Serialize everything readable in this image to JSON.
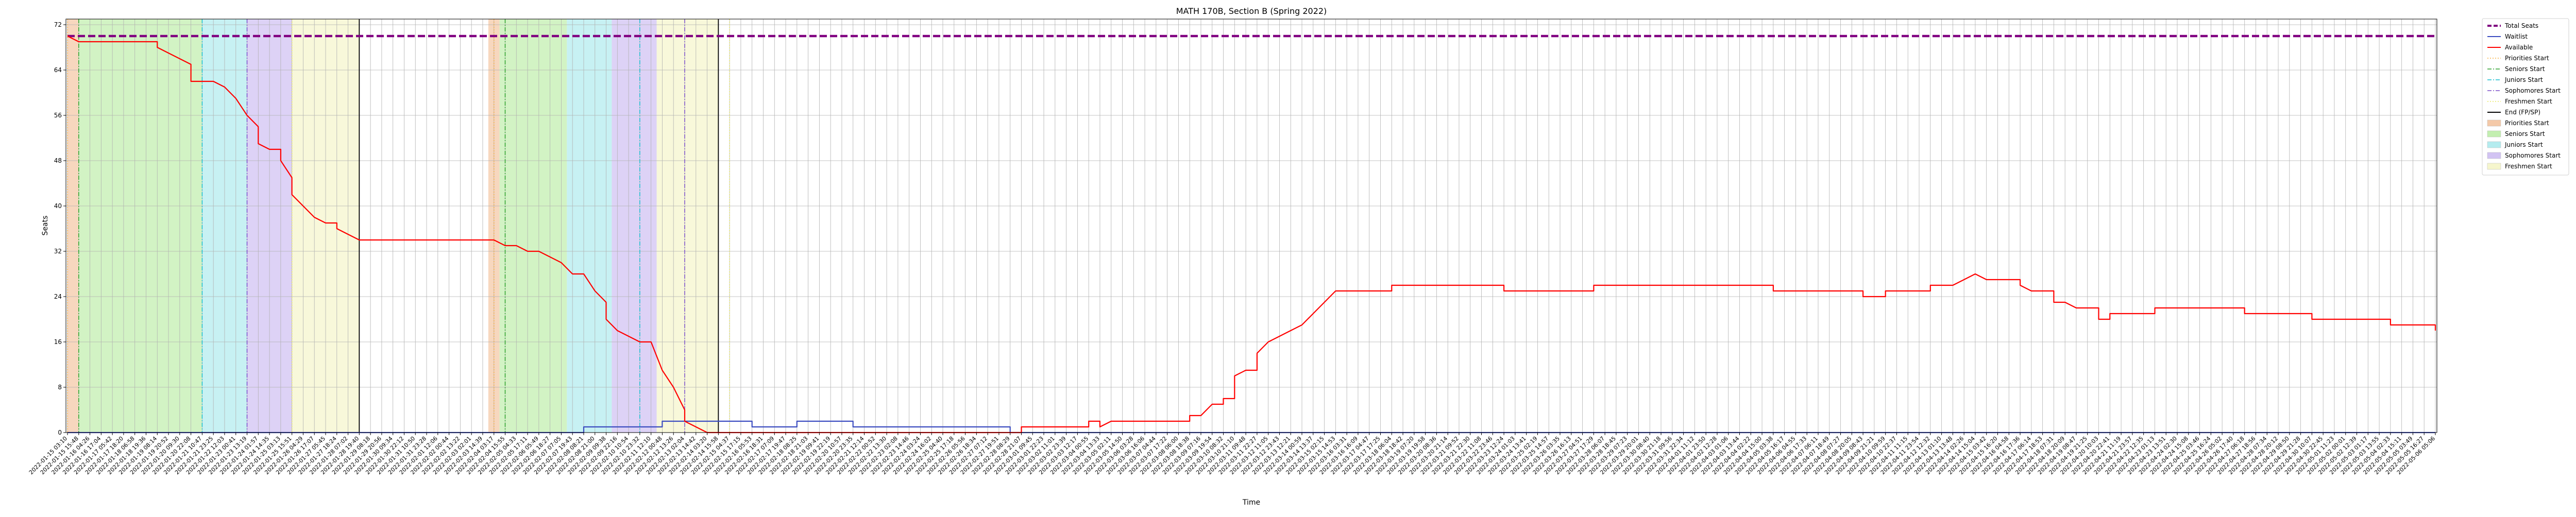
{
  "chart_data": {
    "type": "line",
    "title": "MATH 170B, Section B (Spring 2022)",
    "xlabel": "Time",
    "ylabel": "Seats",
    "ylim": [
      0,
      73
    ],
    "yticks": [
      0,
      8,
      16,
      24,
      32,
      40,
      48,
      56,
      64,
      72
    ],
    "grid": true,
    "legend_position": "outside-right",
    "x_tick_count": 212,
    "x_tick_start_label": "2022-01-15 03:10",
    "x_tick_end_label": "2022-05-06 05:06",
    "series": [
      {
        "name": "Total Seats",
        "color": "#800080",
        "style": "dashed",
        "points": [
          [
            0,
            70
          ],
          [
            211,
            70
          ]
        ]
      },
      {
        "name": "Waitlist",
        "color": "#3b4cc0",
        "style": "solid",
        "points": [
          [
            0,
            0
          ],
          [
            46,
            0
          ],
          [
            46,
            1
          ],
          [
            53,
            1
          ],
          [
            53,
            2
          ],
          [
            61,
            2
          ],
          [
            61,
            1
          ],
          [
            65,
            1
          ],
          [
            65,
            2
          ],
          [
            70,
            2
          ],
          [
            70,
            1
          ],
          [
            84,
            1
          ],
          [
            84,
            0
          ],
          [
            211,
            0
          ]
        ]
      },
      {
        "name": "Available",
        "color": "#ff0000",
        "style": "solid",
        "points": [
          [
            0,
            70
          ],
          [
            1,
            69
          ],
          [
            2,
            69
          ],
          [
            8,
            69
          ],
          [
            8,
            68
          ],
          [
            9,
            67
          ],
          [
            10,
            66
          ],
          [
            11,
            65
          ],
          [
            11,
            62
          ],
          [
            13,
            62
          ],
          [
            14,
            61
          ],
          [
            15,
            59
          ],
          [
            16,
            56
          ],
          [
            17,
            54
          ],
          [
            17,
            51
          ],
          [
            18,
            50
          ],
          [
            19,
            50
          ],
          [
            19,
            48
          ],
          [
            20,
            45
          ],
          [
            20,
            42
          ],
          [
            21,
            40
          ],
          [
            22,
            38
          ],
          [
            23,
            37
          ],
          [
            24,
            37
          ],
          [
            24,
            36
          ],
          [
            25,
            35
          ],
          [
            26,
            34
          ],
          [
            27,
            34
          ],
          [
            28,
            34
          ],
          [
            38,
            34
          ],
          [
            39,
            33
          ],
          [
            40,
            33
          ],
          [
            41,
            32
          ],
          [
            42,
            32
          ],
          [
            43,
            31
          ],
          [
            44,
            30
          ],
          [
            45,
            28
          ],
          [
            46,
            28
          ],
          [
            47,
            25
          ],
          [
            48,
            23
          ],
          [
            48,
            20
          ],
          [
            49,
            18
          ],
          [
            50,
            17
          ],
          [
            51,
            16
          ],
          [
            52,
            16
          ],
          [
            53,
            11
          ],
          [
            54,
            8
          ],
          [
            55,
            4
          ],
          [
            55,
            2
          ],
          [
            56,
            1
          ],
          [
            57,
            0
          ],
          [
            58,
            0
          ],
          [
            85,
            0
          ],
          [
            85,
            1
          ],
          [
            91,
            1
          ],
          [
            91,
            2
          ],
          [
            92,
            2
          ],
          [
            92,
            1
          ],
          [
            93,
            2
          ],
          [
            94,
            2
          ],
          [
            100,
            2
          ],
          [
            100,
            3
          ],
          [
            101,
            3
          ],
          [
            102,
            5
          ],
          [
            103,
            5
          ],
          [
            103,
            6
          ],
          [
            104,
            6
          ],
          [
            104,
            10
          ],
          [
            105,
            11
          ],
          [
            106,
            11
          ],
          [
            106,
            14
          ],
          [
            107,
            16
          ],
          [
            108,
            17
          ],
          [
            109,
            18
          ],
          [
            110,
            19
          ],
          [
            111,
            21
          ],
          [
            112,
            23
          ],
          [
            113,
            25
          ],
          [
            118,
            25
          ],
          [
            118,
            26
          ],
          [
            128,
            26
          ],
          [
            128,
            25
          ],
          [
            136,
            25
          ],
          [
            136,
            26
          ],
          [
            152,
            26
          ],
          [
            152,
            25
          ],
          [
            160,
            25
          ],
          [
            160,
            24
          ],
          [
            162,
            24
          ],
          [
            162,
            25
          ],
          [
            166,
            25
          ],
          [
            166,
            26
          ],
          [
            168,
            26
          ],
          [
            169,
            27
          ],
          [
            170,
            28
          ],
          [
            171,
            27
          ],
          [
            174,
            27
          ],
          [
            174,
            26
          ],
          [
            175,
            25
          ],
          [
            177,
            25
          ],
          [
            177,
            23
          ],
          [
            178,
            23
          ],
          [
            179,
            22
          ],
          [
            181,
            22
          ],
          [
            181,
            20
          ],
          [
            182,
            20
          ],
          [
            182,
            21
          ],
          [
            186,
            21
          ],
          [
            186,
            22
          ],
          [
            194,
            22
          ],
          [
            194,
            21
          ],
          [
            200,
            21
          ],
          [
            200,
            20
          ],
          [
            207,
            20
          ],
          [
            207,
            19
          ],
          [
            211,
            19
          ],
          [
            211,
            18
          ]
        ]
      }
    ],
    "phase_lines": [
      {
        "name": "Priorities Start",
        "color": "#f7b040",
        "style": "dotted",
        "x": [
          0,
          38
        ]
      },
      {
        "name": "Seniors Start",
        "color": "#2ca02c",
        "style": "dashdot",
        "x": [
          1,
          39
        ]
      },
      {
        "name": "Juniors Start",
        "color": "#17becf",
        "style": "dashdot",
        "x": [
          12,
          51
        ]
      },
      {
        "name": "Sophomores Start",
        "color": "#7b4ec9",
        "style": "dashdot",
        "x": [
          16,
          55
        ]
      },
      {
        "name": "Freshmen Start",
        "color": "#e8e860",
        "style": "dotted",
        "x": [
          20,
          59
        ]
      },
      {
        "name": "End (FP/SP)",
        "color": "#000000",
        "style": "solid",
        "x": [
          26,
          58
        ]
      }
    ],
    "phase_spans": [
      {
        "name": "Priorities Start",
        "color": "#f4c9a8",
        "ranges": [
          [
            0,
            1
          ],
          [
            37.5,
            38.5
          ]
        ]
      },
      {
        "name": "Seniors Start",
        "color": "#c3efb0",
        "ranges": [
          [
            1,
            12
          ],
          [
            38.5,
            44.5
          ]
        ]
      },
      {
        "name": "Juniors Start",
        "color": "#b4ecef",
        "ranges": [
          [
            12,
            16
          ],
          [
            44.5,
            48.5
          ]
        ]
      },
      {
        "name": "Sophomores Start",
        "color": "#d2c3f3",
        "ranges": [
          [
            16,
            20
          ],
          [
            48.5,
            52.5
          ]
        ]
      },
      {
        "name": "Freshmen Start",
        "color": "#f6f6cd",
        "ranges": [
          [
            20,
            26
          ],
          [
            52.5,
            58
          ]
        ]
      }
    ],
    "legend": [
      {
        "label": "Total Seats",
        "kind": "line",
        "color": "#800080",
        "style": "dashed",
        "width": 4
      },
      {
        "label": "Waitlist",
        "kind": "line",
        "color": "#3b4cc0",
        "style": "solid",
        "width": 2
      },
      {
        "label": "Available",
        "kind": "line",
        "color": "#ff0000",
        "style": "solid",
        "width": 2
      },
      {
        "label": "Priorities Start",
        "kind": "line",
        "color": "#f7b040",
        "style": "dotted",
        "width": 1.5
      },
      {
        "label": "Seniors Start",
        "kind": "line",
        "color": "#2ca02c",
        "style": "dashdot",
        "width": 1.5
      },
      {
        "label": "Juniors Start",
        "kind": "line",
        "color": "#17becf",
        "style": "dashdot",
        "width": 1.5
      },
      {
        "label": "Sophomores Start",
        "kind": "line",
        "color": "#7b4ec9",
        "style": "dashdot",
        "width": 1.5
      },
      {
        "label": "Freshmen Start",
        "kind": "line",
        "color": "#e8e860",
        "style": "dotted",
        "width": 1.5
      },
      {
        "label": "End (FP/SP)",
        "kind": "line",
        "color": "#000000",
        "style": "solid",
        "width": 2
      },
      {
        "label": "Priorities Start",
        "kind": "patch",
        "color": "#f4c9a8"
      },
      {
        "label": "Seniors Start",
        "kind": "patch",
        "color": "#c3efb0"
      },
      {
        "label": "Juniors Start",
        "kind": "patch",
        "color": "#b4ecef"
      },
      {
        "label": "Sophomores Start",
        "kind": "patch",
        "color": "#d2c3f3"
      },
      {
        "label": "Freshmen Start",
        "kind": "patch",
        "color": "#f6f6cd"
      }
    ]
  }
}
